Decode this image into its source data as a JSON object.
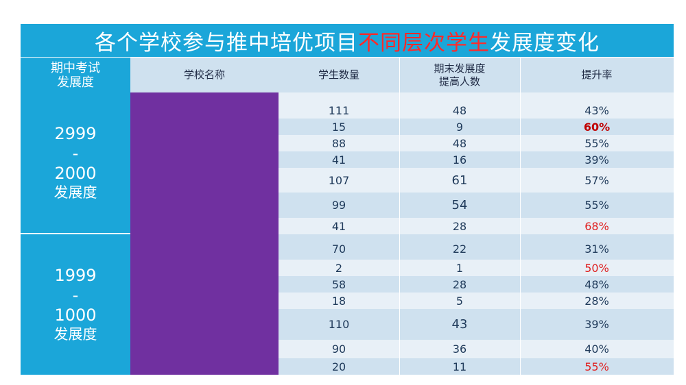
{
  "title": {
    "main": "各个学校参与推中培优项目",
    "highlight": "不同层次学生",
    "tail": "发展度变化"
  },
  "headers": {
    "level_line1": "期中考试",
    "level_line2": "发展度",
    "school": "学校名称",
    "students": "学生数量",
    "improved_line1": "期末发展度",
    "improved_line2": "提高人数",
    "rate": "提升率"
  },
  "bands": [
    {
      "top": "2999",
      "dash": "-",
      "bottom": "2000",
      "label": "发展度"
    },
    {
      "top": "1999",
      "dash": "-",
      "bottom": "1000",
      "label": "发展度"
    }
  ],
  "rows": [
    {
      "students": "111",
      "improved": "48",
      "rate": "43%",
      "style": "normal"
    },
    {
      "students": "15",
      "improved": "9",
      "rate": "60%",
      "style": "boldred"
    },
    {
      "students": "88",
      "improved": "48",
      "rate": "55%",
      "style": "normal"
    },
    {
      "students": "41",
      "improved": "16",
      "rate": "39%",
      "style": "normal"
    },
    {
      "students": "107",
      "improved": "61",
      "rate": "57%",
      "style": "normal"
    },
    {
      "students": "99",
      "improved": "54",
      "rate": "55%",
      "style": "normal"
    },
    {
      "students": "41",
      "improved": "28",
      "rate": "68%",
      "style": "red"
    },
    {
      "students": "70",
      "improved": "22",
      "rate": "31%",
      "style": "normal"
    },
    {
      "students": "2",
      "improved": "1",
      "rate": "50%",
      "style": "red"
    },
    {
      "students": "58",
      "improved": "28",
      "rate": "48%",
      "style": "normal"
    },
    {
      "students": "18",
      "improved": "5",
      "rate": "28%",
      "style": "normal"
    },
    {
      "students": "110",
      "improved": "43",
      "rate": "39%",
      "style": "normal"
    },
    {
      "students": "90",
      "improved": "36",
      "rate": "40%",
      "style": "normal"
    },
    {
      "students": "20",
      "improved": "11",
      "rate": "55%",
      "style": "red"
    }
  ],
  "colors": {
    "header_blue": "#1ba6d9",
    "highlight_red": "#ff2a2a",
    "redacted_purple": "#7030a0"
  }
}
